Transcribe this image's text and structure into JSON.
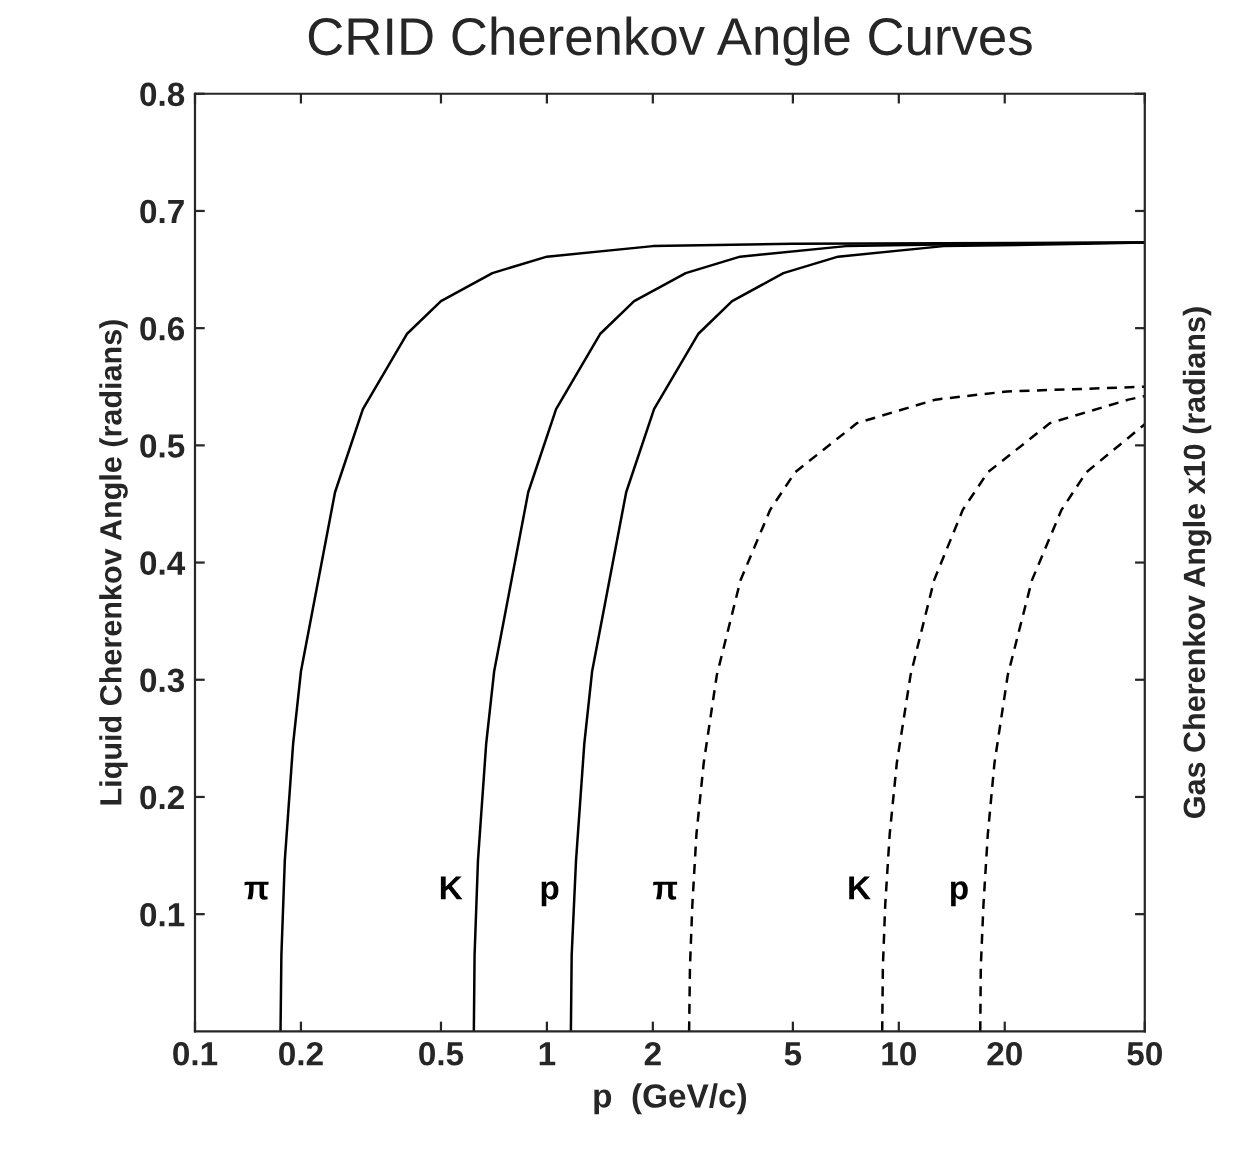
{
  "chart_data": {
    "type": "line",
    "title": "CRID Cherenkov Angle Curves",
    "xlabel": "p  (GeV/c)",
    "ylabel": "Liquid Cherenkov Angle (radians)",
    "y2label": "Gas Cherenkov Angle x10 (radians)",
    "log": "x",
    "xlim": [
      0.1,
      50
    ],
    "ylim": [
      0,
      0.8
    ],
    "xticks": [
      0.1,
      0.2,
      0.5,
      1,
      2,
      5,
      10,
      20,
      50
    ],
    "yticks": [
      0.1,
      0.2,
      0.3,
      0.4,
      0.5,
      0.6,
      0.7,
      0.8
    ],
    "grid": false,
    "legend": false,
    "series": [
      {
        "name": "π",
        "color": "#000000",
        "line_style": "solid",
        "x": [
          0.175,
          0.176,
          0.18,
          0.19,
          0.2,
          0.25,
          0.3,
          0.4,
          0.5,
          0.7,
          1,
          2,
          5,
          50
        ],
        "values": [
          0,
          0.065,
          0.146,
          0.245,
          0.307,
          0.46,
          0.531,
          0.595,
          0.623,
          0.647,
          0.661,
          0.67,
          0.672,
          0.673
        ]
      },
      {
        "name": "K",
        "color": "#000000",
        "line_style": "solid",
        "x": [
          0.62,
          0.623,
          0.637,
          0.672,
          0.708,
          0.885,
          1.062,
          1.416,
          1.77,
          2.48,
          3.54,
          7.08,
          17.7,
          50
        ],
        "values": [
          0,
          0.065,
          0.146,
          0.245,
          0.307,
          0.46,
          0.531,
          0.595,
          0.623,
          0.647,
          0.661,
          0.67,
          0.672,
          0.673
        ]
      },
      {
        "name": "p",
        "color": "#000000",
        "line_style": "solid",
        "x": [
          1.17,
          1.176,
          1.21,
          1.277,
          1.344,
          1.68,
          2.016,
          2.69,
          3.36,
          4.7,
          6.72,
          13.4,
          33.6,
          50
        ],
        "values": [
          0,
          0.065,
          0.146,
          0.245,
          0.307,
          0.46,
          0.531,
          0.595,
          0.623,
          0.647,
          0.661,
          0.67,
          0.672,
          0.673
        ]
      },
      {
        "name": "π",
        "color": "#000000",
        "line_style": "dashed",
        "x": [
          2.536,
          2.55,
          2.59,
          2.66,
          2.79,
          3.04,
          3.55,
          4.31,
          5.07,
          7.61,
          12.7,
          20.3,
          50
        ],
        "values": [
          0,
          0.055,
          0.108,
          0.168,
          0.229,
          0.304,
          0.385,
          0.445,
          0.477,
          0.519,
          0.539,
          0.546,
          0.55
        ]
      },
      {
        "name": "K",
        "color": "#000000",
        "line_style": "dashed",
        "x": [
          8.97,
          9.01,
          9.15,
          9.42,
          9.87,
          10.8,
          12.6,
          15.2,
          17.9,
          26.9,
          44.9,
          50
        ],
        "values": [
          0,
          0.055,
          0.108,
          0.168,
          0.229,
          0.304,
          0.385,
          0.445,
          0.477,
          0.519,
          0.539,
          0.542
        ]
      },
      {
        "name": "p",
        "color": "#000000",
        "line_style": "dashed",
        "x": [
          17.04,
          17.1,
          17.4,
          17.9,
          18.7,
          20.4,
          23.9,
          29.0,
          34.1,
          50
        ],
        "values": [
          0,
          0.055,
          0.108,
          0.168,
          0.229,
          0.304,
          0.385,
          0.445,
          0.477,
          0.518
        ]
      }
    ]
  }
}
